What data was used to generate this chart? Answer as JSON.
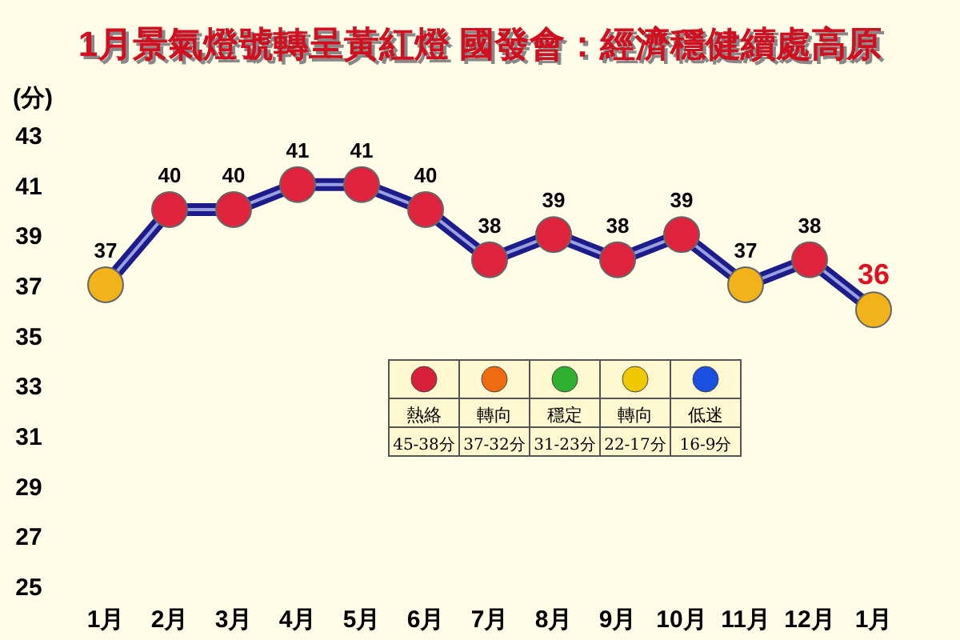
{
  "chart_data": {
    "type": "line",
    "title": "1月景氣燈號轉呈黃紅燈 國發會：經濟穩健續處高原",
    "ylabel": "(分)",
    "categories": [
      "1月",
      "2月",
      "3月",
      "4月",
      "5月",
      "6月",
      "7月",
      "8月",
      "9月",
      "10月",
      "11月",
      "12月",
      "1月"
    ],
    "series": [
      {
        "color": "#1c1c8a",
        "values": [
          37,
          40,
          40,
          41,
          41,
          40,
          38,
          39,
          38,
          39,
          37,
          38,
          36
        ],
        "colors": [
          "#f2b21a",
          "#e0233c",
          "#e0233c",
          "#e0233c",
          "#e0233c",
          "#e0233c",
          "#e0233c",
          "#e0233c",
          "#e0233c",
          "#e0233c",
          "#f2b21a",
          "#e0233c",
          "#f2b21a"
        ]
      }
    ],
    "ylim": [
      25,
      43
    ],
    "yticks": [
      25,
      27,
      29,
      31,
      33,
      35,
      37,
      39,
      41,
      43
    ],
    "grid": false,
    "marker": "circle",
    "data_labels": true,
    "annotations": [
      "熱絡",
      "45-38分",
      "轉向",
      "37-32分",
      "穩定",
      "31-23分",
      "轉向",
      "22-17分",
      "低迷",
      "16-9分"
    ]
  }
}
